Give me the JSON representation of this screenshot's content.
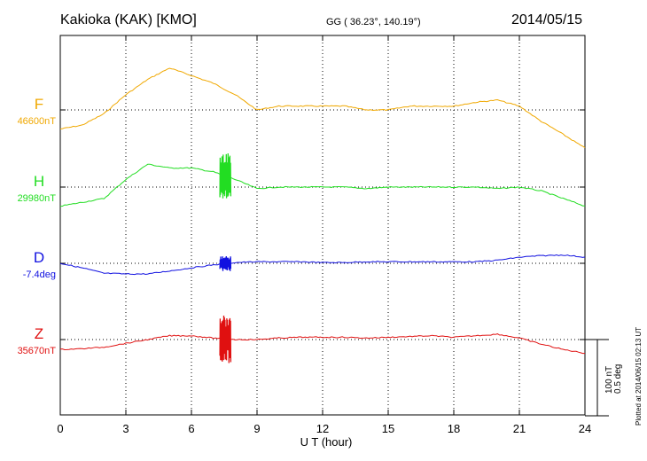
{
  "header": {
    "station": "Kakioka (KAK)  [KMO]",
    "coords": "GG ( 36.23°, 140.19°)",
    "date": "2014/05/15"
  },
  "footer": {
    "xlabel": "U T (hour)",
    "plotted": "Plotted at 2014/06/15 02:13 UT"
  },
  "scale": {
    "nt": "100 nT",
    "deg": "0.5 deg"
  },
  "chart_data": {
    "type": "line",
    "title": "Kakioka (KAK)  [KMO]",
    "xlabel": "U T (hour)",
    "xlim": [
      0,
      24
    ],
    "xticks": [
      "0",
      "3",
      "6",
      "9",
      "12",
      "15",
      "18",
      "21",
      "24"
    ],
    "scale_bar": {
      "nt_per_bar": 100,
      "deg_per_bar": 0.5
    },
    "grid": true,
    "series": [
      {
        "name": "F",
        "baseline_label": "46600nT",
        "unit": "nT",
        "baseline": 46600,
        "color": "#f0a800",
        "points": [
          [
            0,
            46575
          ],
          [
            1,
            46580
          ],
          [
            2,
            46595
          ],
          [
            3,
            46620
          ],
          [
            4,
            46640
          ],
          [
            5,
            46655
          ],
          [
            6,
            46645
          ],
          [
            7,
            46635
          ],
          [
            8,
            46620
          ],
          [
            9,
            46600
          ],
          [
            10,
            46605
          ],
          [
            11,
            46605
          ],
          [
            12,
            46605
          ],
          [
            13,
            46605
          ],
          [
            14,
            46600
          ],
          [
            15,
            46600
          ],
          [
            16,
            46605
          ],
          [
            17,
            46605
          ],
          [
            18,
            46605
          ],
          [
            19,
            46610
          ],
          [
            20,
            46613
          ],
          [
            21,
            46605
          ],
          [
            22,
            46585
          ],
          [
            23,
            46568
          ],
          [
            24,
            46550
          ]
        ]
      },
      {
        "name": "H",
        "baseline_label": "29980nT",
        "unit": "nT",
        "baseline": 29980,
        "color": "#22dd22",
        "points": [
          [
            0,
            29955
          ],
          [
            1,
            29960
          ],
          [
            2,
            29965
          ],
          [
            3,
            29990
          ],
          [
            4,
            30010
          ],
          [
            5,
            30005
          ],
          [
            6,
            30005
          ],
          [
            7,
            30000
          ],
          [
            8,
            29990
          ],
          [
            9,
            29978
          ],
          [
            10,
            29980
          ],
          [
            11,
            29980
          ],
          [
            12,
            29980
          ],
          [
            13,
            29980
          ],
          [
            14,
            29978
          ],
          [
            15,
            29980
          ],
          [
            16,
            29980
          ],
          [
            17,
            29980
          ],
          [
            18,
            29980
          ],
          [
            19,
            29980
          ],
          [
            20,
            29978
          ],
          [
            21,
            29980
          ],
          [
            22,
            29975
          ],
          [
            23,
            29965
          ],
          [
            24,
            29955
          ]
        ],
        "disturbance": {
          "x_start": 7.3,
          "x_end": 7.8,
          "amplitude": 30
        }
      },
      {
        "name": "D",
        "baseline_label": "-7.4deg",
        "unit": "deg",
        "baseline": -7.4,
        "color": "#1010e0",
        "points": [
          [
            0,
            -7.4
          ],
          [
            1,
            -7.43
          ],
          [
            2,
            -7.465
          ],
          [
            3,
            -7.47
          ],
          [
            4,
            -7.47
          ],
          [
            5,
            -7.45
          ],
          [
            6,
            -7.43
          ],
          [
            7,
            -7.41
          ],
          [
            8,
            -7.395
          ],
          [
            9,
            -7.39
          ],
          [
            10,
            -7.39
          ],
          [
            11,
            -7.39
          ],
          [
            12,
            -7.395
          ],
          [
            13,
            -7.395
          ],
          [
            14,
            -7.39
          ],
          [
            15,
            -7.39
          ],
          [
            16,
            -7.39
          ],
          [
            17,
            -7.39
          ],
          [
            18,
            -7.39
          ],
          [
            19,
            -7.39
          ],
          [
            20,
            -7.38
          ],
          [
            21,
            -7.36
          ],
          [
            22,
            -7.35
          ],
          [
            23,
            -7.345
          ],
          [
            24,
            -7.36
          ]
        ],
        "disturbance": {
          "x_start": 7.3,
          "x_end": 7.8,
          "amplitude": 0.05
        }
      },
      {
        "name": "Z",
        "baseline_label": "35670nT",
        "unit": "nT",
        "baseline": 35670,
        "color": "#e01010",
        "points": [
          [
            0,
            35657
          ],
          [
            1,
            35658
          ],
          [
            2,
            35660
          ],
          [
            3,
            35665
          ],
          [
            4,
            35670
          ],
          [
            5,
            35675
          ],
          [
            6,
            35675
          ],
          [
            7,
            35672
          ],
          [
            8,
            35670
          ],
          [
            9,
            35670
          ],
          [
            10,
            35672
          ],
          [
            11,
            35673
          ],
          [
            12,
            35673
          ],
          [
            13,
            35673
          ],
          [
            14,
            35672
          ],
          [
            15,
            35673
          ],
          [
            16,
            35674
          ],
          [
            17,
            35675
          ],
          [
            18,
            35673
          ],
          [
            19,
            35675
          ],
          [
            20,
            35677
          ],
          [
            21,
            35672
          ],
          [
            22,
            35664
          ],
          [
            23,
            35657
          ],
          [
            24,
            35652
          ]
        ],
        "disturbance": {
          "x_start": 7.3,
          "x_end": 7.8,
          "amplitude": 32
        }
      }
    ]
  }
}
